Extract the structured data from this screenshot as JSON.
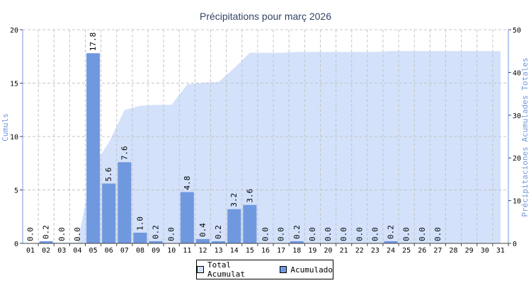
{
  "chart_data": {
    "type": "bar",
    "title": "Précipitations pour març 2026",
    "ylabel": "Cumuls",
    "y2label": "Précipitaciones Acumulades Totales",
    "categories": [
      "01",
      "02",
      "03",
      "04",
      "05",
      "06",
      "07",
      "08",
      "09",
      "10",
      "11",
      "12",
      "13",
      "14",
      "15",
      "16",
      "17",
      "18",
      "19",
      "20",
      "21",
      "22",
      "23",
      "24",
      "25",
      "26",
      "27",
      "28",
      "29",
      "30",
      "31"
    ],
    "series": [
      {
        "name": "Acumulado",
        "type": "bar",
        "axis": "left",
        "color": "#6f98df",
        "values": [
          0.0,
          0.2,
          0.0,
          0.0,
          17.8,
          5.6,
          7.6,
          1.0,
          0.2,
          0.0,
          4.8,
          0.4,
          0.2,
          3.2,
          3.6,
          0.0,
          0.0,
          0.2,
          0.0,
          0.0,
          0.0,
          0.0,
          0.0,
          0.2,
          0.0,
          0.0,
          0.0,
          0,
          0,
          0,
          0
        ],
        "labels": [
          "0.0",
          "0.2",
          "0.0",
          "0.0",
          "17.8",
          "5.6",
          "7.6",
          "1.0",
          "0.2",
          "0.0",
          "4.8",
          "0.4",
          "0.2",
          "3.2",
          "3.6",
          "0.0",
          "0.0",
          "0.2",
          "0.0",
          "0.0",
          "0.0",
          "0.0",
          "0.0",
          "0.2",
          "0.0",
          "0.0",
          "0.0",
          "",
          "",
          "",
          ""
        ]
      },
      {
        "name": "Total Acumulat",
        "type": "area",
        "axis": "right",
        "color": "#d3e1fa",
        "values": [
          0.0,
          0.2,
          0.2,
          0.2,
          18.0,
          23.6,
          31.2,
          32.2,
          32.4,
          32.4,
          37.2,
          37.6,
          37.8,
          41.0,
          44.6,
          44.6,
          44.6,
          44.8,
          44.8,
          44.8,
          44.8,
          44.8,
          44.8,
          45.0,
          45.0,
          45.0,
          45.0,
          45.0,
          45.0,
          45.0,
          45.0
        ]
      }
    ],
    "ylim": [
      0,
      20
    ],
    "y2lim": [
      0,
      50
    ],
    "yticks": [
      0,
      5,
      10,
      15,
      20
    ],
    "y2ticks": [
      0,
      10,
      20,
      30,
      40,
      50
    ],
    "grid": true,
    "legend_position": "bottom-center"
  },
  "legend": {
    "total_label": "Total Acumulat",
    "daily_label": "Acumulado"
  }
}
